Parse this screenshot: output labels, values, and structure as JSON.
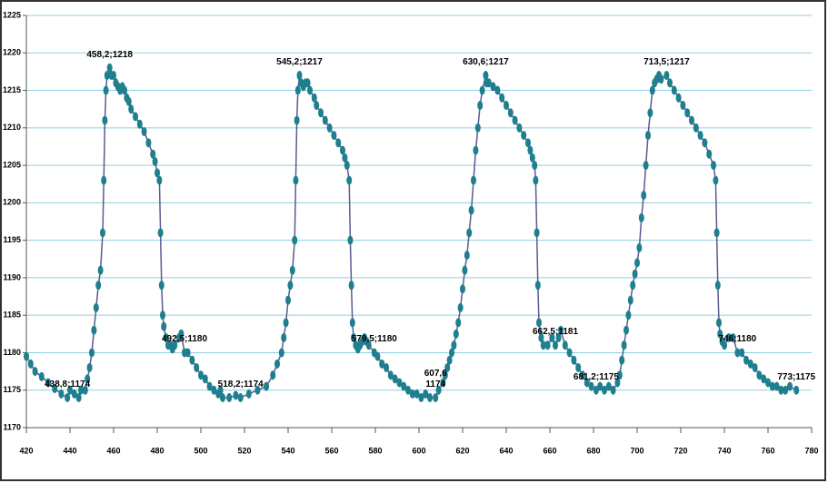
{
  "chart_data": {
    "type": "line",
    "series": [
      {
        "color": "#1f7f8f",
        "line_color": "#5b5b8f",
        "x": [
          420,
          422,
          424,
          427,
          430,
          433,
          436,
          438.8,
          440,
          442,
          444,
          445,
          447,
          448,
          449,
          450,
          451,
          452,
          453,
          454,
          455,
          455.5,
          456,
          456.5,
          457,
          458.2,
          459,
          460,
          461,
          462,
          463,
          464,
          465,
          466,
          467,
          468,
          470,
          472,
          474,
          476,
          478,
          479,
          480,
          481,
          481.5,
          482,
          482.5,
          483,
          484,
          485,
          486,
          487,
          488,
          490,
          491,
          492.5,
          494,
          496,
          498,
          500,
          502,
          504,
          506,
          508,
          509,
          510,
          513,
          516,
          518.2,
          522,
          526,
          530,
          533,
          535,
          537,
          538,
          539,
          540,
          541,
          542,
          543,
          543.5,
          544,
          544.5,
          545.2,
          546,
          547,
          548,
          549,
          550,
          552,
          553,
          555,
          557,
          559,
          561,
          563,
          565,
          566,
          567,
          568,
          568.5,
          569,
          569.5,
          570,
          571,
          572,
          573,
          574,
          575,
          576,
          577,
          579.5,
          581,
          583,
          585,
          587,
          589,
          591,
          593,
          595,
          597,
          599,
          601,
          603,
          605,
          607.6,
          609,
          611,
          612,
          613,
          614,
          615,
          616,
          617,
          618,
          619,
          620,
          621,
          622,
          623,
          624,
          625,
          626,
          627,
          628,
          629,
          630.6,
          631,
          632,
          634,
          636,
          638,
          640,
          642,
          644,
          646,
          648,
          650,
          651,
          652,
          653,
          653.5,
          654,
          654.5,
          655,
          656,
          657,
          659,
          661,
          662.5,
          664,
          665,
          667,
          669,
          671,
          673,
          675,
          677,
          679,
          681.2,
          683,
          685,
          687,
          689,
          691,
          692,
          693,
          694,
          695,
          696,
          697,
          698,
          699,
          700,
          701,
          702,
          703,
          704,
          705,
          706,
          707,
          708,
          709,
          710,
          711,
          713.5,
          715,
          717,
          719,
          721,
          723,
          725,
          727,
          729,
          731,
          733,
          735,
          736,
          736.5,
          737,
          737.5,
          738,
          739,
          740,
          742,
          744,
          746,
          748,
          750,
          752,
          754,
          756,
          758,
          760,
          762,
          764,
          766,
          768,
          770,
          773
        ],
        "values": [
          1179.5,
          1178.5,
          1177.5,
          1176.8,
          1176,
          1175.2,
          1174.5,
          1174,
          1175,
          1174.5,
          1174,
          1175,
          1175,
          1176.5,
          1178,
          1180,
          1183,
          1186,
          1189,
          1191,
          1196,
          1203,
          1211,
          1215,
          1217,
          1218,
          1217,
          1217,
          1216,
          1215.5,
          1215,
          1215.5,
          1215,
          1214,
          1213.5,
          1212.5,
          1211.5,
          1210.5,
          1209.5,
          1208,
          1206.5,
          1205.5,
          1204,
          1203,
          1196,
          1189,
          1185,
          1183.5,
          1182,
          1181,
          1181,
          1180.5,
          1181,
          1182,
          1182.5,
          1180,
          1180,
          1179,
          1178,
          1177,
          1176.5,
          1175.5,
          1175,
          1174.5,
          1175,
          1174,
          1174,
          1174.3,
          1174,
          1174.5,
          1175,
          1175.5,
          1177,
          1178.5,
          1180,
          1182,
          1184,
          1187,
          1189,
          1191,
          1195,
          1203,
          1211,
          1215,
          1217,
          1216,
          1215.5,
          1216,
          1216,
          1215,
          1214,
          1213,
          1212,
          1211,
          1210,
          1209,
          1208,
          1207,
          1206,
          1205,
          1203,
          1195,
          1189,
          1184,
          1182,
          1181,
          1180.5,
          1181,
          1181.5,
          1182,
          1181.5,
          1181,
          1180,
          1179.5,
          1178.5,
          1178,
          1177,
          1176.5,
          1176,
          1175.5,
          1175,
          1174.5,
          1174.5,
          1174,
          1174.5,
          1174,
          1174,
          1175,
          1176,
          1177,
          1178,
          1179,
          1180,
          1181,
          1182.5,
          1184,
          1186,
          1188.5,
          1191,
          1193,
          1196,
          1199,
          1203,
          1207,
          1210,
          1213,
          1215,
          1217,
          1216,
          1216,
          1215.5,
          1215,
          1214,
          1213,
          1212,
          1211,
          1210,
          1209,
          1208,
          1207,
          1206,
          1205,
          1203,
          1196,
          1189,
          1184,
          1182,
          1181,
          1181,
          1182,
          1181,
          1182,
          1183,
          1181,
          1180,
          1179,
          1178,
          1177,
          1176,
          1175.5,
          1175,
          1175.5,
          1175,
          1175.5,
          1175,
          1176,
          1177,
          1179,
          1181,
          1183,
          1185,
          1187,
          1189,
          1190.5,
          1192,
          1194,
          1198,
          1201,
          1205,
          1209,
          1212,
          1215,
          1216,
          1216.5,
          1217,
          1216.5,
          1217,
          1216,
          1215,
          1214,
          1213,
          1212,
          1211,
          1210,
          1209,
          1208,
          1206.5,
          1205,
          1203,
          1196,
          1189,
          1184,
          1182.5,
          1181.5,
          1181,
          1182,
          1182,
          1180,
          1180,
          1179,
          1178.5,
          1178,
          1177,
          1176.5,
          1176,
          1175.5,
          1175.5,
          1175,
          1175,
          1175.5,
          1175
        ]
      }
    ],
    "annotations": [
      {
        "text": "438,8;1174",
        "x": 438.8,
        "y": 1174
      },
      {
        "text": "458,2;1218",
        "x": 458.2,
        "y": 1218
      },
      {
        "text": "492,5;1180",
        "x": 492.5,
        "y": 1180
      },
      {
        "text": "518,2;1174",
        "x": 518.2,
        "y": 1174
      },
      {
        "text": "545,2;1217",
        "x": 545.2,
        "y": 1217
      },
      {
        "text": "579,5;1180",
        "x": 579.5,
        "y": 1180
      },
      {
        "text": "607,6\n1174",
        "x": 607.6,
        "y": 1174
      },
      {
        "text": "630,6;1217",
        "x": 630.6,
        "y": 1217
      },
      {
        "text": "662,5;1181",
        "x": 662.5,
        "y": 1181
      },
      {
        "text": "681,2;1175",
        "x": 681.2,
        "y": 1175
      },
      {
        "text": "713,5;1217",
        "x": 713.5,
        "y": 1217
      },
      {
        "text": "746;1180",
        "x": 746,
        "y": 1180
      },
      {
        "text": "773;1175",
        "x": 773,
        "y": 1175
      }
    ],
    "xlim": [
      420,
      780
    ],
    "xticks": [
      420,
      440,
      460,
      480,
      500,
      520,
      540,
      560,
      580,
      600,
      620,
      640,
      660,
      680,
      700,
      720,
      740,
      760,
      780
    ],
    "ylim": [
      1170,
      1225
    ],
    "yticks": [
      1170,
      1175,
      1180,
      1185,
      1190,
      1195,
      1200,
      1205,
      1210,
      1215,
      1220,
      1225
    ],
    "grid": true,
    "grid_color": "#8fcfe0"
  }
}
